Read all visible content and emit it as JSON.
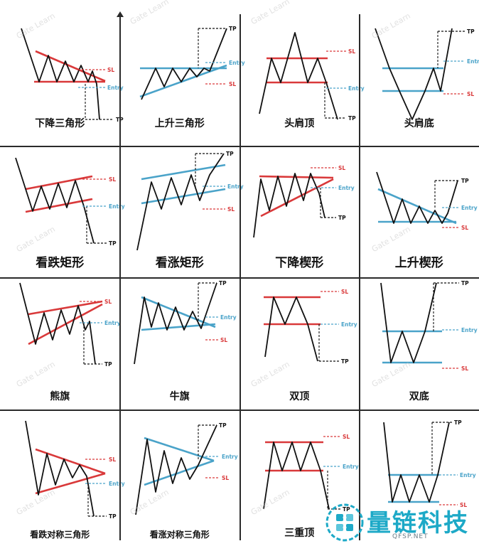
{
  "colors": {
    "line": "#111111",
    "red": "#d9393a",
    "blue": "#4aa3c9",
    "grid": "#2a2a2a",
    "brand": "#1da9c7"
  },
  "labels": {
    "tp": "TP",
    "sl": "SL",
    "entry": "Entry"
  },
  "patterns": [
    {
      "title": "下降三角形",
      "up": false,
      "kind": "desc_triangle"
    },
    {
      "title": "上升三角形",
      "up": true,
      "kind": "asc_triangle"
    },
    {
      "title": "头肩顶",
      "up": false,
      "kind": "head_shoulders_top"
    },
    {
      "title": "头肩底",
      "up": true,
      "kind": "head_shoulders_bottom"
    },
    {
      "title": "看跌矩形",
      "up": false,
      "kind": "bear_rect"
    },
    {
      "title": "看涨矩形",
      "up": true,
      "kind": "bull_rect"
    },
    {
      "title": "下降楔形",
      "up": false,
      "kind": "desc_wedge"
    },
    {
      "title": "上升楔形",
      "up": true,
      "kind": "asc_wedge"
    },
    {
      "title": "熊旗",
      "up": false,
      "kind": "bear_flag"
    },
    {
      "title": "牛旗",
      "up": true,
      "kind": "bull_flag"
    },
    {
      "title": "双顶",
      "up": false,
      "kind": "double_top"
    },
    {
      "title": "双底",
      "up": true,
      "kind": "double_bottom"
    },
    {
      "title": "看跌对称三角形",
      "up": false,
      "kind": "bear_sym"
    },
    {
      "title": "看涨对称三角形",
      "up": true,
      "kind": "bull_sym"
    },
    {
      "title": "三重顶",
      "up": false,
      "kind": "triple_top"
    },
    {
      "title": "",
      "up": true,
      "kind": "triple_bottom"
    }
  ],
  "watermark": "Gate Learn",
  "brand": {
    "name": "量链科技",
    "url": "QFSP.NET",
    "logo_icon": "puzzle-circle-icon"
  }
}
